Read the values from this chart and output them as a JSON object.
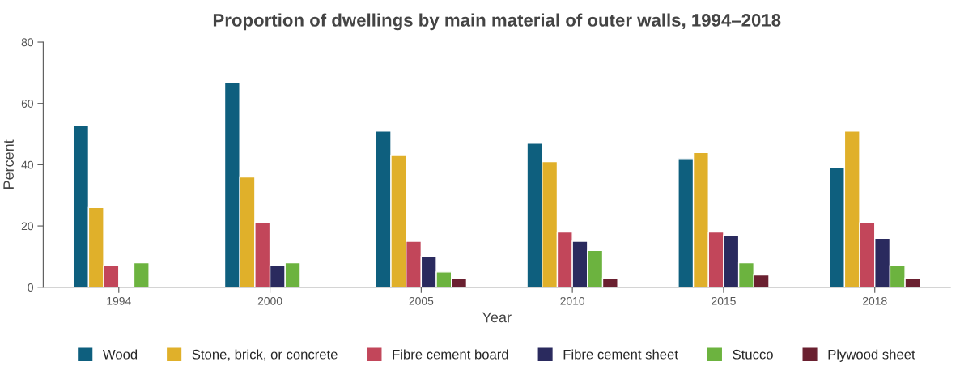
{
  "chart_data": {
    "type": "bar",
    "title": "Proportion of dwellings by main material of outer walls, 1994–2018",
    "xlabel": "Year",
    "ylabel": "Percent",
    "categories": [
      "1994",
      "2000",
      "2005",
      "2010",
      "2015",
      "2018"
    ],
    "series": [
      {
        "name": "Wood",
        "color": "#0e5f7e",
        "values": [
          53,
          67,
          51,
          47,
          42,
          39
        ]
      },
      {
        "name": "Stone, brick, or concrete",
        "color": "#e0b02a",
        "values": [
          26,
          36,
          43,
          41,
          44,
          51
        ]
      },
      {
        "name": "Fibre cement board",
        "color": "#c2465a",
        "values": [
          7,
          21,
          15,
          18,
          18,
          21
        ]
      },
      {
        "name": "Fibre cement sheet",
        "color": "#2a2a5e",
        "values": [
          null,
          7,
          10,
          15,
          17,
          16
        ]
      },
      {
        "name": "Stucco",
        "color": "#6cb33f",
        "values": [
          8,
          8,
          5,
          12,
          8,
          7
        ]
      },
      {
        "name": "Plywood sheet",
        "color": "#6a2030",
        "values": [
          null,
          null,
          3,
          3,
          4,
          3
        ]
      }
    ],
    "ylim": [
      0,
      80
    ],
    "yticks": [
      0,
      20,
      40,
      60,
      80
    ],
    "grid": false,
    "legend": "bottom"
  }
}
